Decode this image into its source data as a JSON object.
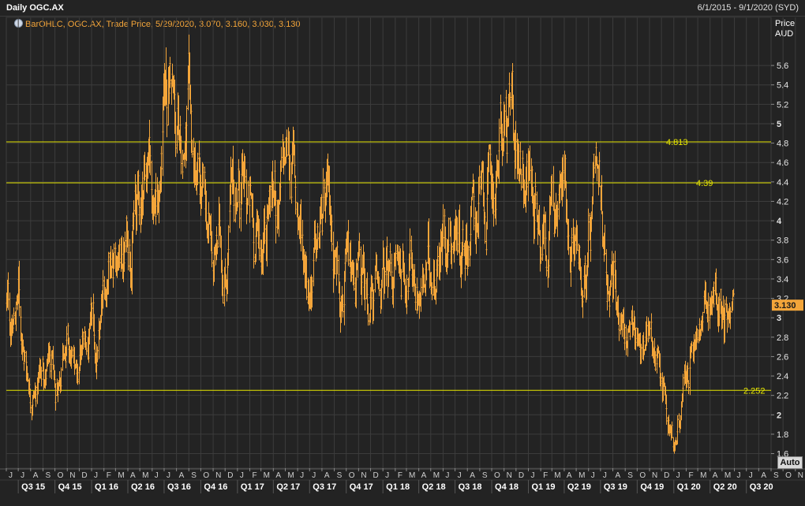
{
  "header": {
    "title": "Daily OGC.AX",
    "date_range": "6/1/2015 - 9/1/2020 (SYD)"
  },
  "legend": {
    "text": "BarOHLC, OGC.AX, Trade Price, 5/29/2020, 3.070, 3.160, 3.030, 3.130"
  },
  "axis": {
    "price_title": "Price",
    "currency": "AUD",
    "auto_label": "Auto"
  },
  "colors": {
    "background": "#232323",
    "grid": "#3c3c3c",
    "bars": "#f3a53a",
    "levels": "#e6e600",
    "last_price_bg": "#f3a53a"
  },
  "chart_data": {
    "type": "ohlc",
    "title": "Daily OGC.AX",
    "x_range": [
      "2015-06-01",
      "2020-09-01"
    ],
    "ylim": [
      1.45,
      5.95
    ],
    "y_ticks": [
      "1.6",
      "1.8",
      "2",
      "2.2",
      "2.4",
      "2.6",
      "2.8",
      "3",
      "3.2",
      "3.4",
      "3.6",
      "3.8",
      "4",
      "4.2",
      "4.4",
      "4.6",
      "4.8",
      "5",
      "5.2",
      "5.4",
      "5.6"
    ],
    "bold_ticks": [
      "2",
      "3",
      "4",
      "5"
    ],
    "month_labels": [
      "J",
      "J",
      "A",
      "S",
      "O",
      "N",
      "D",
      "J",
      "F",
      "M",
      "A",
      "M",
      "J",
      "J",
      "A",
      "S",
      "O",
      "N",
      "D",
      "J",
      "F",
      "M",
      "A",
      "M",
      "J",
      "J",
      "A",
      "S",
      "O",
      "N",
      "D",
      "J",
      "F",
      "M",
      "A",
      "M",
      "J",
      "J",
      "A",
      "S",
      "O",
      "N",
      "D",
      "J",
      "F",
      "M",
      "A",
      "M",
      "J",
      "J",
      "A",
      "S",
      "O",
      "N",
      "D",
      "J",
      "F",
      "M",
      "A",
      "M",
      "J",
      "J",
      "A",
      "S",
      "O",
      "N",
      "D",
      "J",
      "F",
      "M",
      "A",
      "M",
      "J",
      "J",
      "A",
      "S"
    ],
    "quarter_labels": [
      "Q3 15",
      "Q4 15",
      "Q1 16",
      "Q2 16",
      "Q3 16",
      "Q4 16",
      "Q1 17",
      "Q2 17",
      "Q3 17",
      "Q4 17",
      "Q1 18",
      "Q2 18",
      "Q3 18",
      "Q4 18",
      "Q1 19",
      "Q2 19",
      "Q3 19",
      "Q4 19",
      "Q1 20",
      "Q2 20",
      "Q3 20"
    ],
    "horizontal_levels": [
      {
        "value": 4.813,
        "label": "4.813"
      },
      {
        "value": 4.39,
        "label": "4.39"
      },
      {
        "value": 2.252,
        "label": "2.252"
      }
    ],
    "last_price": {
      "value": 3.13,
      "label": "3.130"
    },
    "last_bar": {
      "date": "2020-05-29",
      "open": 3.07,
      "high": 3.16,
      "low": 3.03,
      "close": 3.13
    },
    "series": [
      {
        "values": [
          [
            "2015-06-01",
            3.15
          ],
          [
            "2015-06-15",
            2.9
          ],
          [
            "2015-07-01",
            3.25
          ],
          [
            "2015-07-15",
            2.6
          ],
          [
            "2015-08-01",
            2.35
          ],
          [
            "2015-08-15",
            2.25
          ],
          [
            "2015-09-01",
            2.5
          ],
          [
            "2015-09-15",
            2.45
          ],
          [
            "2015-10-01",
            2.15
          ],
          [
            "2015-10-15",
            2.6
          ],
          [
            "2015-11-01",
            2.55
          ],
          [
            "2015-11-15",
            2.45
          ],
          [
            "2015-12-01",
            2.6
          ],
          [
            "2015-12-15",
            2.65
          ],
          [
            "2016-01-01",
            2.75
          ],
          [
            "2016-01-15",
            2.55
          ],
          [
            "2016-02-01",
            3.1
          ],
          [
            "2016-02-15",
            3.9
          ],
          [
            "2016-03-01",
            3.85
          ],
          [
            "2016-03-15",
            3.6
          ],
          [
            "2016-04-01",
            3.85
          ],
          [
            "2016-04-15",
            4.1
          ],
          [
            "2016-05-01",
            4.15
          ],
          [
            "2016-05-15",
            4.7
          ],
          [
            "2016-06-01",
            4.4
          ],
          [
            "2016-06-15",
            4.2
          ],
          [
            "2016-07-01",
            4.9
          ],
          [
            "2016-07-15",
            5.6
          ],
          [
            "2016-08-01",
            4.6
          ],
          [
            "2016-08-15",
            4.9
          ],
          [
            "2016-09-01",
            4.85
          ],
          [
            "2016-09-15",
            4.4
          ],
          [
            "2016-10-01",
            4.1
          ],
          [
            "2016-10-15",
            3.9
          ],
          [
            "2016-11-01",
            3.5
          ],
          [
            "2016-11-15",
            3.8
          ],
          [
            "2016-12-01",
            3.6
          ],
          [
            "2016-12-15",
            4.1
          ],
          [
            "2017-01-01",
            4.4
          ],
          [
            "2017-01-15",
            4.25
          ],
          [
            "2017-02-01",
            4.0
          ],
          [
            "2017-02-15",
            3.8
          ],
          [
            "2017-03-01",
            3.85
          ],
          [
            "2017-03-15",
            4.3
          ],
          [
            "2017-04-01",
            4.35
          ],
          [
            "2017-04-15",
            4.2
          ],
          [
            "2017-05-01",
            4.5
          ],
          [
            "2017-05-15",
            4.7
          ],
          [
            "2017-06-01",
            4.1
          ],
          [
            "2017-06-15",
            3.75
          ],
          [
            "2017-07-01",
            3.5
          ],
          [
            "2017-07-15",
            3.6
          ],
          [
            "2017-08-01",
            3.9
          ],
          [
            "2017-08-15",
            4.0
          ],
          [
            "2017-09-01",
            3.7
          ],
          [
            "2017-09-15",
            3.6
          ],
          [
            "2017-10-01",
            3.4
          ],
          [
            "2017-10-15",
            3.25
          ],
          [
            "2017-11-01",
            3.35
          ],
          [
            "2017-11-15",
            3.2
          ],
          [
            "2017-12-01",
            3.3
          ],
          [
            "2017-12-15",
            3.15
          ],
          [
            "2018-01-01",
            3.3
          ],
          [
            "2018-01-15",
            3.4
          ],
          [
            "2018-02-01",
            3.55
          ],
          [
            "2018-02-15",
            3.55
          ],
          [
            "2018-03-01",
            3.6
          ],
          [
            "2018-03-15",
            3.55
          ],
          [
            "2018-04-01",
            3.4
          ],
          [
            "2018-04-15",
            3.3
          ],
          [
            "2018-05-01",
            3.55
          ],
          [
            "2018-05-15",
            3.75
          ],
          [
            "2018-06-01",
            3.95
          ],
          [
            "2018-06-15",
            4.05
          ],
          [
            "2018-07-01",
            4.0
          ],
          [
            "2018-07-15",
            3.9
          ],
          [
            "2018-08-01",
            4.0
          ],
          [
            "2018-08-15",
            4.1
          ],
          [
            "2018-09-01",
            4.15
          ],
          [
            "2018-09-15",
            4.0
          ],
          [
            "2018-10-01",
            4.3
          ],
          [
            "2018-10-15",
            4.5
          ],
          [
            "2018-11-01",
            5.0
          ],
          [
            "2018-11-15",
            4.85
          ],
          [
            "2018-12-01",
            4.7
          ],
          [
            "2018-12-15",
            4.8
          ],
          [
            "2019-01-01",
            4.55
          ],
          [
            "2019-01-15",
            4.3
          ],
          [
            "2019-02-01",
            4.1
          ],
          [
            "2019-02-15",
            3.95
          ],
          [
            "2019-03-01",
            4.2
          ],
          [
            "2019-03-15",
            4.05
          ],
          [
            "2019-04-01",
            4.4
          ],
          [
            "2019-04-15",
            4.0
          ],
          [
            "2019-05-01",
            3.8
          ],
          [
            "2019-05-15",
            3.5
          ],
          [
            "2019-06-01",
            3.6
          ],
          [
            "2019-06-15",
            4.0
          ],
          [
            "2019-07-01",
            3.85
          ],
          [
            "2019-07-15",
            3.6
          ],
          [
            "2019-08-01",
            3.5
          ],
          [
            "2019-08-15",
            3.15
          ],
          [
            "2019-09-01",
            2.9
          ],
          [
            "2019-09-15",
            2.7
          ],
          [
            "2019-10-01",
            2.85
          ],
          [
            "2019-10-15",
            2.75
          ],
          [
            "2019-11-01",
            2.8
          ],
          [
            "2019-11-15",
            2.7
          ],
          [
            "2019-12-01",
            2.5
          ],
          [
            "2019-12-15",
            2.0
          ],
          [
            "2020-01-01",
            1.75
          ],
          [
            "2020-01-15",
            1.95
          ],
          [
            "2020-02-01",
            2.3
          ],
          [
            "2020-02-15",
            2.55
          ],
          [
            "2020-03-01",
            2.75
          ],
          [
            "2020-03-15",
            2.9
          ],
          [
            "2020-04-01",
            3.1
          ],
          [
            "2020-04-15",
            3.15
          ],
          [
            "2020-05-01",
            3.2
          ],
          [
            "2020-05-29",
            3.13
          ]
        ]
      }
    ]
  }
}
